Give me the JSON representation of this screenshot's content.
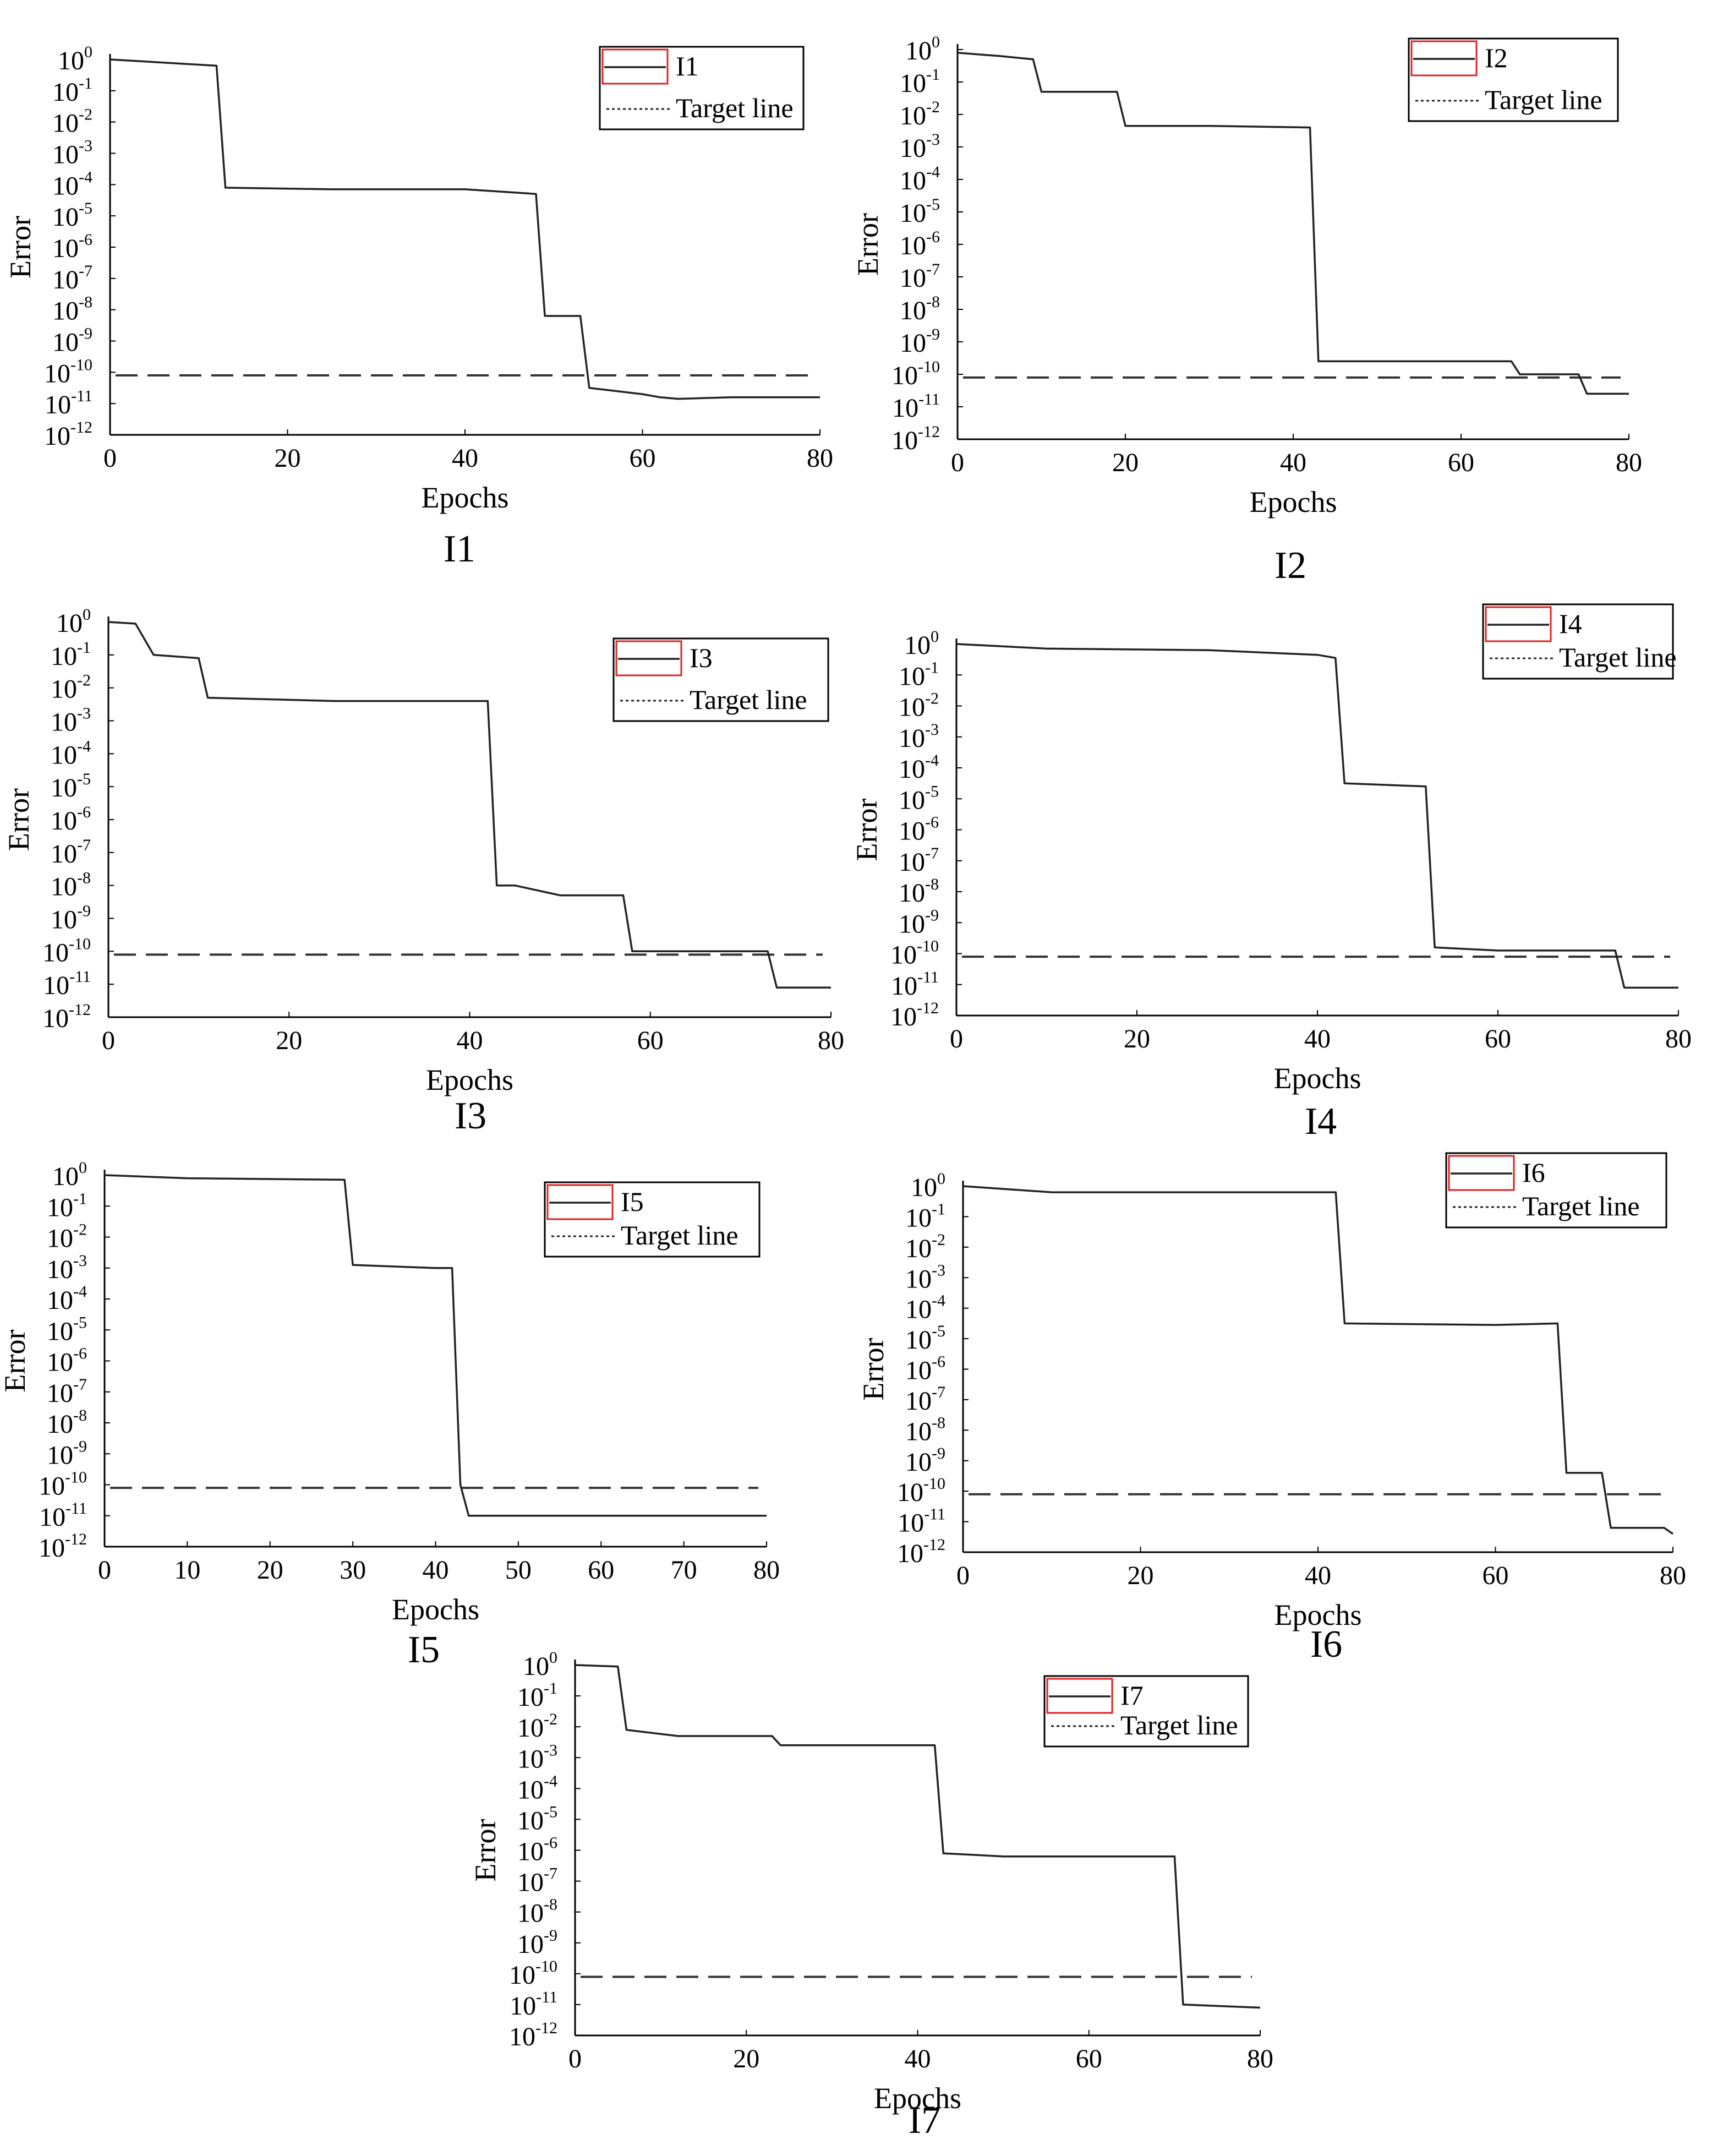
{
  "figure": {
    "x_axis_label": "Epochs",
    "y_axis_label": "Error",
    "target_legend_label": "Target line"
  },
  "chart_data": [
    {
      "id": "I1",
      "type": "line",
      "caption": "I1",
      "legend_label": "I1",
      "xlabel": "Epochs",
      "ylabel": "Error",
      "yscale": "log10",
      "xlim": [
        0,
        80
      ],
      "ylim_exponent": [
        -12,
        0
      ],
      "xticks": [
        0,
        20,
        40,
        60,
        80
      ],
      "yticks": [
        "10^0",
        "10^-1",
        "10^-2",
        "10^-3",
        "10^-4",
        "10^-5",
        "10^-6",
        "10^-7",
        "10^-8",
        "10^-9",
        "10^-10",
        "10^-11",
        "10^-12"
      ],
      "target_log10": -10.1,
      "series": [
        {
          "name": "I1",
          "x": [
            0,
            6,
            12,
            13,
            25,
            40,
            48,
            49,
            53,
            54,
            57,
            60,
            62,
            64,
            70,
            80
          ],
          "log10_y": [
            0.0,
            -0.1,
            -0.2,
            -4.1,
            -4.15,
            -4.15,
            -4.3,
            -8.2,
            -8.2,
            -10.5,
            -10.6,
            -10.7,
            -10.8,
            -10.85,
            -10.8,
            -10.8
          ]
        }
      ]
    },
    {
      "id": "I2",
      "type": "line",
      "caption": "I2",
      "legend_label": "I2",
      "xlabel": "Epochs",
      "ylabel": "Error",
      "yscale": "log10",
      "xlim": [
        0,
        80
      ],
      "ylim_exponent": [
        -12,
        0
      ],
      "xticks": [
        0,
        20,
        40,
        60,
        80
      ],
      "yticks": [
        "10^0",
        "10^-1",
        "10^-2",
        "10^-3",
        "10^-4",
        "10^-5",
        "10^-6",
        "10^-7",
        "10^-8",
        "10^-9",
        "10^-10",
        "10^-11",
        "10^-12"
      ],
      "target_log10": -10.1,
      "series": [
        {
          "name": "I2",
          "x": [
            0,
            5,
            9,
            10,
            19,
            20,
            30,
            42,
            43,
            50,
            66,
            67,
            74,
            75,
            80
          ],
          "log10_y": [
            -0.1,
            -0.2,
            -0.3,
            -1.3,
            -1.3,
            -2.35,
            -2.35,
            -2.4,
            -9.6,
            -9.6,
            -9.6,
            -10.0,
            -10.0,
            -10.6,
            -10.6
          ]
        }
      ]
    },
    {
      "id": "I3",
      "type": "line",
      "caption": "I3",
      "legend_label": "I3",
      "xlabel": "Epochs",
      "ylabel": "Error",
      "yscale": "log10",
      "xlim": [
        0,
        80
      ],
      "ylim_exponent": [
        -12,
        0
      ],
      "xticks": [
        0,
        20,
        40,
        60,
        80
      ],
      "yticks": [
        "10^0",
        "10^-1",
        "10^-2",
        "10^-3",
        "10^-4",
        "10^-5",
        "10^-6",
        "10^-7",
        "10^-8",
        "10^-9",
        "10^-10",
        "10^-11",
        "10^-12"
      ],
      "target_log10": -10.1,
      "series": [
        {
          "name": "I3",
          "x": [
            0,
            3,
            5,
            10,
            11,
            25,
            42,
            43,
            45,
            50,
            57,
            58,
            73,
            74,
            80
          ],
          "log10_y": [
            0.0,
            -0.05,
            -1.0,
            -1.1,
            -2.3,
            -2.4,
            -2.4,
            -8.0,
            -8.0,
            -8.3,
            -8.3,
            -10.0,
            -10.0,
            -11.1,
            -11.1
          ]
        }
      ]
    },
    {
      "id": "I4",
      "type": "line",
      "caption": "I4",
      "legend_label": "I4",
      "xlabel": "Epochs",
      "ylabel": "Error",
      "yscale": "log10",
      "xlim": [
        0,
        80
      ],
      "ylim_exponent": [
        -12,
        0
      ],
      "xticks": [
        0,
        20,
        40,
        60,
        80
      ],
      "yticks": [
        "10^0",
        "10^-1",
        "10^-2",
        "10^-3",
        "10^-4",
        "10^-5",
        "10^-6",
        "10^-7",
        "10^-8",
        "10^-9",
        "10^-10",
        "10^-11",
        "10^-12"
      ],
      "target_log10": -10.1,
      "series": [
        {
          "name": "I4",
          "x": [
            0,
            10,
            28,
            40,
            42,
            43,
            52,
            53,
            60,
            73,
            74,
            80
          ],
          "log10_y": [
            0.0,
            -0.15,
            -0.2,
            -0.35,
            -0.45,
            -4.5,
            -4.6,
            -9.8,
            -9.9,
            -9.9,
            -11.1,
            -11.1
          ]
        }
      ]
    },
    {
      "id": "I5",
      "type": "line",
      "caption": "I5",
      "legend_label": "I5",
      "xlabel": "Epochs",
      "ylabel": "Error",
      "yscale": "log10",
      "xlim": [
        0,
        80
      ],
      "ylim_exponent": [
        -12,
        0
      ],
      "xticks": [
        0,
        10,
        20,
        30,
        40,
        50,
        60,
        70,
        80
      ],
      "yticks": [
        "10^0",
        "10^-1",
        "10^-2",
        "10^-3",
        "10^-4",
        "10^-5",
        "10^-6",
        "10^-7",
        "10^-8",
        "10^-9",
        "10^-10",
        "10^-11",
        "10^-12"
      ],
      "target_log10": -10.1,
      "series": [
        {
          "name": "I5",
          "x": [
            0,
            10,
            29,
            30,
            40,
            42,
            43,
            44,
            60,
            80
          ],
          "log10_y": [
            0.0,
            -0.1,
            -0.15,
            -2.9,
            -3.0,
            -3.0,
            -10.0,
            -11.0,
            -11.0,
            -11.0
          ]
        }
      ]
    },
    {
      "id": "I6",
      "type": "line",
      "caption": "I6",
      "legend_label": "I6",
      "xlabel": "Epochs",
      "ylabel": "Error",
      "yscale": "log10",
      "xlim": [
        0,
        80
      ],
      "ylim_exponent": [
        -12,
        0
      ],
      "xticks": [
        0,
        20,
        40,
        60,
        80
      ],
      "yticks": [
        "10^0",
        "10^-1",
        "10^-2",
        "10^-3",
        "10^-4",
        "10^-5",
        "10^-6",
        "10^-7",
        "10^-8",
        "10^-9",
        "10^-10",
        "10^-11",
        "10^-12"
      ],
      "target_log10": -10.1,
      "series": [
        {
          "name": "I6",
          "x": [
            0,
            10,
            42,
            43,
            60,
            67,
            68,
            72,
            73,
            79,
            80
          ],
          "log10_y": [
            0.0,
            -0.2,
            -0.2,
            -4.5,
            -4.55,
            -4.5,
            -9.4,
            -9.4,
            -11.2,
            -11.2,
            -11.4
          ]
        }
      ]
    },
    {
      "id": "I7",
      "type": "line",
      "caption": "I7",
      "legend_label": "I7",
      "xlabel": "Epochs",
      "ylabel": "Error",
      "yscale": "log10",
      "xlim": [
        0,
        80
      ],
      "ylim_exponent": [
        -12,
        0
      ],
      "xticks": [
        0,
        20,
        40,
        60,
        80
      ],
      "yticks": [
        "10^0",
        "10^-1",
        "10^-2",
        "10^-3",
        "10^-4",
        "10^-5",
        "10^-6",
        "10^-7",
        "10^-8",
        "10^-9",
        "10^-10",
        "10^-11",
        "10^-12"
      ],
      "target_log10": -10.1,
      "series": [
        {
          "name": "I7",
          "x": [
            0,
            5,
            6,
            12,
            23,
            24,
            42,
            43,
            50,
            70,
            71,
            80
          ],
          "log10_y": [
            0.0,
            -0.05,
            -2.1,
            -2.3,
            -2.3,
            -2.6,
            -2.6,
            -6.1,
            -6.2,
            -6.2,
            -11.0,
            -11.1
          ]
        }
      ]
    }
  ]
}
